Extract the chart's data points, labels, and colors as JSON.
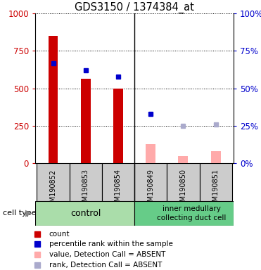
{
  "title": "GDS3150 / 1374384_at",
  "samples": [
    "GSM190852",
    "GSM190853",
    "GSM190854",
    "GSM190849",
    "GSM190850",
    "GSM190851"
  ],
  "count_values": [
    850,
    565,
    500,
    130,
    50,
    80
  ],
  "count_absent": [
    false,
    false,
    false,
    true,
    true,
    true
  ],
  "percentile_values": [
    67,
    62,
    58,
    33,
    25,
    26
  ],
  "percentile_absent": [
    false,
    false,
    false,
    false,
    true,
    true
  ],
  "ylim_left": [
    0,
    1000
  ],
  "ylim_right": [
    0,
    100
  ],
  "yticks_left": [
    0,
    250,
    500,
    750,
    1000
  ],
  "yticks_right": [
    0,
    25,
    50,
    75,
    100
  ],
  "bar_color_present": "#cc0000",
  "bar_color_absent": "#ffaaaa",
  "dot_color_present": "#0000cc",
  "dot_color_absent": "#aaaacc",
  "group1_label": "control",
  "group2_label": "inner medullary\ncollecting duct cell",
  "group1_bg": "#99ee99",
  "group2_bg": "#66dd66",
  "group_border_color": "#000000",
  "cell_label_bg": "#ccffcc",
  "legend_items": [
    {
      "label": "count",
      "color": "#cc0000"
    },
    {
      "label": "percentile rank within the sample",
      "color": "#0000cc"
    },
    {
      "label": "value, Detection Call = ABSENT",
      "color": "#ffaaaa"
    },
    {
      "label": "rank, Detection Call = ABSENT",
      "color": "#aaaacc"
    }
  ],
  "cell_type_label": "cell type",
  "tick_color_left": "#cc0000",
  "tick_color_right": "#0000cc",
  "bar_width": 0.3,
  "xticklabels_area_color": "#cccccc",
  "group_box_color_1": "#aaeebb",
  "group_box_color_2": "#66cc88"
}
